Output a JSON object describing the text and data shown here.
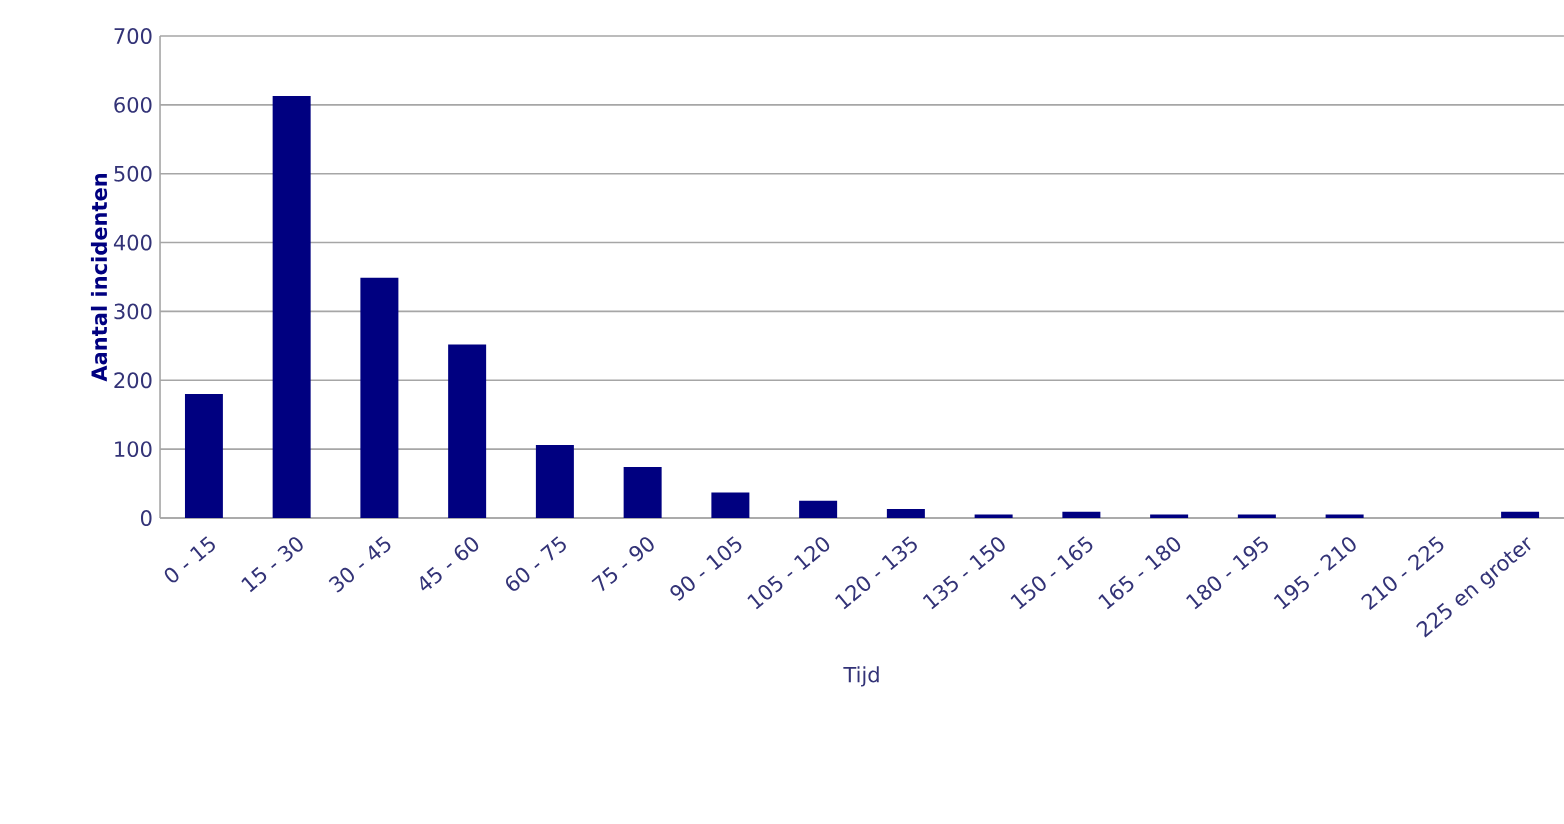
{
  "chart_data": {
    "type": "bar",
    "xlabel": "Tijd",
    "ylabel": "Aantal incidenten",
    "categories": [
      "0 - 15",
      "15 - 30",
      "30 - 45",
      "45 - 60",
      "60 - 75",
      "75 - 90",
      "90 - 105",
      "105 - 120",
      "120 - 135",
      "135 - 150",
      "150 - 165",
      "165 - 180",
      "180 - 195",
      "195 - 210",
      "210 - 225",
      "225 en groter"
    ],
    "values": [
      180,
      613,
      349,
      252,
      106,
      74,
      37,
      25,
      13,
      5,
      9,
      5,
      5,
      5,
      0,
      9
    ],
    "color": "#000080",
    "ylim": [
      0,
      700
    ],
    "yticks": [
      0,
      100,
      200,
      300,
      400,
      500,
      600,
      700
    ],
    "grid": "y"
  }
}
